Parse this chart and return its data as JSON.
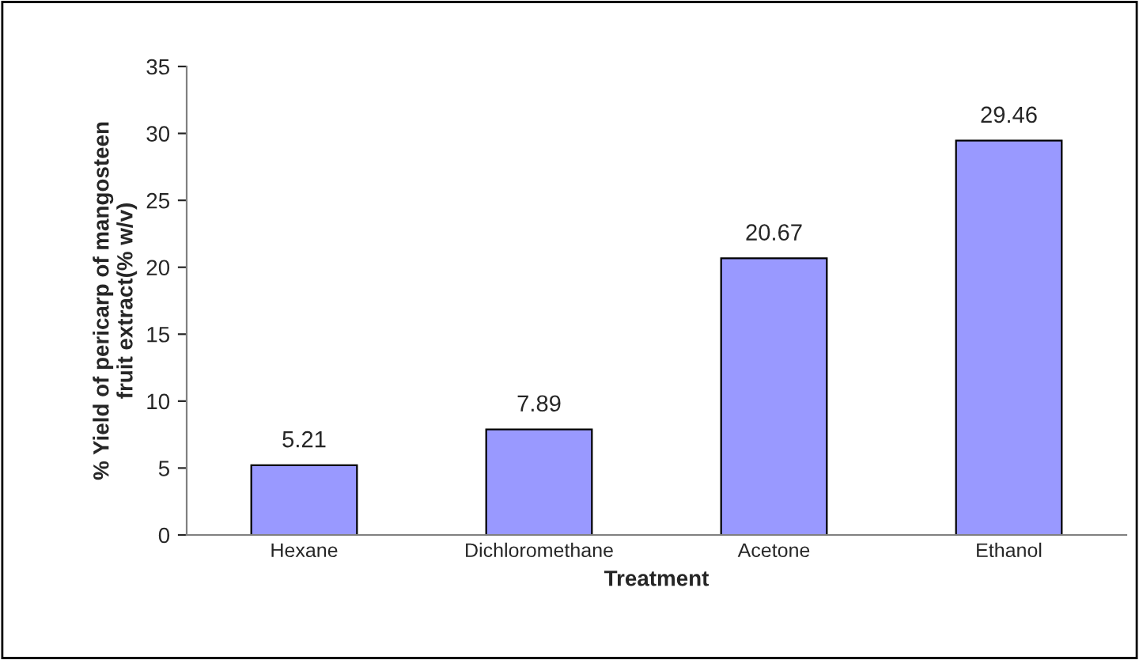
{
  "chart_data": {
    "type": "bar",
    "xlabel": "Treatment",
    "ylabel": "% Yield of pericarp of mangosteen\nfruit extract(% w/v)",
    "categories": [
      "Hexane",
      "Dichloromethane",
      "Acetone",
      "Ethanol"
    ],
    "values": [
      5.21,
      7.89,
      20.67,
      29.46
    ],
    "color": "#9999ff",
    "ylim": [
      0,
      35
    ],
    "yticks": [
      0,
      5,
      10,
      15,
      20,
      25,
      30,
      35
    ],
    "grid": false,
    "data_labels": true
  }
}
